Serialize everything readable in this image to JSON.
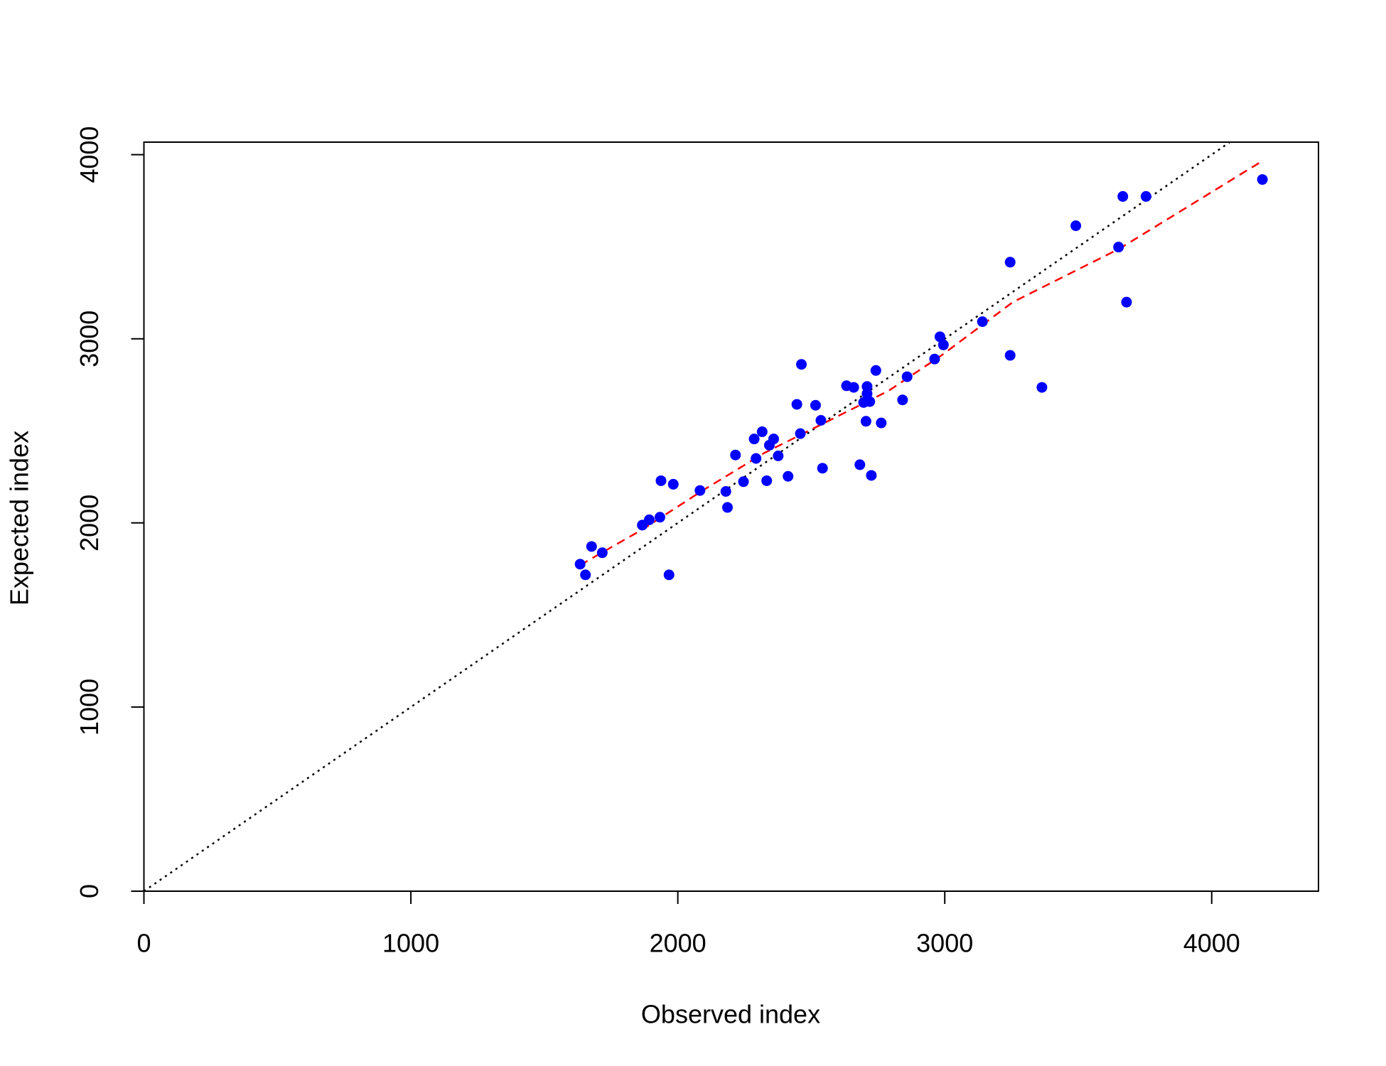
{
  "chart_data": {
    "type": "scatter",
    "xlabel": "Observed index",
    "ylabel": "Expected index",
    "xlim": [
      0,
      4400
    ],
    "ylim": [
      0,
      4068
    ],
    "xticks": [
      0,
      1000,
      2000,
      3000,
      4000
    ],
    "yticks": [
      0,
      1000,
      2000,
      3000,
      4000
    ],
    "points": {
      "color": "#0000ff",
      "x": [
        1634,
        1654,
        1677,
        1717,
        1867,
        1893,
        1933,
        1937,
        1967,
        1983,
        2083,
        2180,
        2186,
        2216,
        2246,
        2286,
        2293,
        2316,
        2333,
        2343,
        2359,
        2376,
        2413,
        2446,
        2459,
        2463,
        2516,
        2536,
        2542,
        2632,
        2659,
        2682,
        2696,
        2705,
        2709,
        2709,
        2719,
        2725,
        2742,
        2762,
        2842,
        2859,
        2962,
        2982,
        2995,
        3141,
        3245,
        3245,
        3364,
        3491,
        3651,
        3667,
        3681,
        3754,
        4190
      ],
      "y": [
        1776,
        1718,
        1872,
        1838,
        1988,
        2017,
        2031,
        2229,
        1718,
        2210,
        2176,
        2171,
        2084,
        2369,
        2224,
        2456,
        2350,
        2495,
        2229,
        2422,
        2456,
        2364,
        2253,
        2644,
        2485,
        2861,
        2639,
        2557,
        2297,
        2745,
        2736,
        2316,
        2654,
        2552,
        2741,
        2702,
        2659,
        2258,
        2828,
        2543,
        2668,
        2794,
        2890,
        3011,
        2967,
        3093,
        3416,
        2910,
        2736,
        3614,
        3498,
        3773,
        3199,
        3773,
        3865
      ]
    },
    "fit": {
      "color": "#ff0000",
      "dash": "dashed",
      "x": [
        1634,
        1867,
        2083,
        2323,
        2589,
        2789,
        2988,
        3255,
        3654,
        4190
      ],
      "y": [
        1771,
        1964,
        2167,
        2379,
        2572,
        2717,
        2910,
        3199,
        3489,
        3966
      ]
    },
    "diagonal": {
      "color": "#000000",
      "dash": "dotted"
    }
  }
}
